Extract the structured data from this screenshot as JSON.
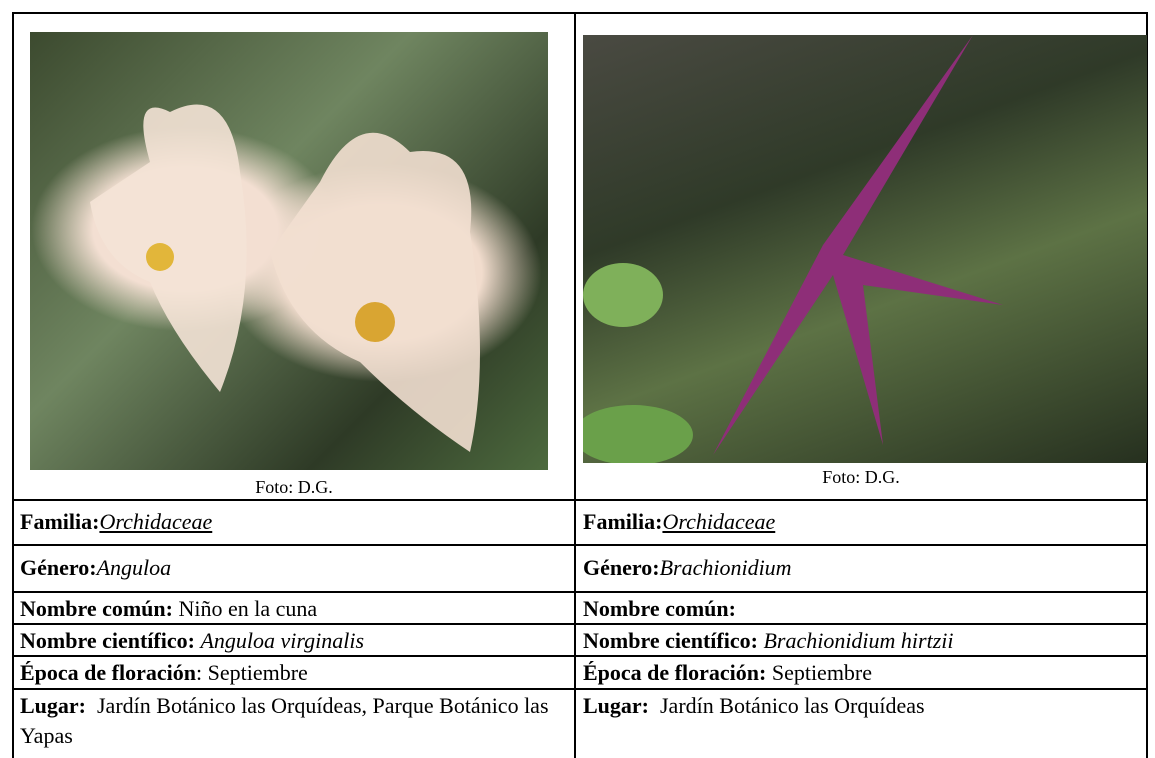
{
  "columns": [
    {
      "photo_caption": "Foto: D.G.",
      "fields": [
        {
          "label": "Familia:",
          "value": "Orchidaceae"
        },
        {
          "label": "Género:",
          "value": "Anguloa"
        },
        {
          "label": "Nombre común:",
          "value": "Niño en la cuna"
        },
        {
          "label": "Nombre científico:",
          "value": "Anguloa virginalis"
        },
        {
          "label": "Época de floración",
          "value": ": Septiembre"
        },
        {
          "label": "Lugar:",
          "value": "Jardín Botánico las Orquídeas, Parque Botánico las Yapas"
        }
      ]
    },
    {
      "photo_caption": "Foto: D.G.",
      "fields": [
        {
          "label": "Familia:",
          "value": "Orchidaceae"
        },
        {
          "label": "Género:",
          "value": "Brachionidium"
        },
        {
          "label": "Nombre común:"
        },
        {
          "label": "Nombre científico:",
          "value": "Brachionidium hirtzii"
        },
        {
          "label": "Época de floración:",
          "value": "Septiembre"
        },
        {
          "label": "Lugar:",
          "value": "Jardín Botánico las Orquídeas"
        }
      ]
    }
  ]
}
